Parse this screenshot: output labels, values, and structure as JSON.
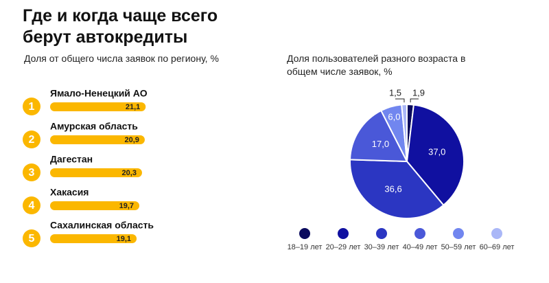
{
  "title": "Где и когда чаще всего берут автокредиты",
  "chart_data": [
    {
      "type": "bar",
      "subtitle": "Доля от общего числа заявок по региону, %",
      "ranks": [
        1,
        2,
        3,
        4,
        5
      ],
      "categories": [
        "Ямало-Ненецкий АО",
        "Амурская область",
        "Дагестан",
        "Хакасия",
        "Сахалинская область"
      ],
      "values": [
        21.1,
        20.9,
        20.3,
        19.7,
        19.1
      ],
      "value_labels": [
        "21,1",
        "20,9",
        "20,3",
        "19,7",
        "19,1"
      ],
      "color": "#fbb700"
    },
    {
      "type": "pie",
      "subtitle": "Доля пользователей разного возраста в общем числе заявок, %",
      "categories": [
        "18–19 лет",
        "20–29 лет",
        "30–39 лет",
        "40–49 лет",
        "50–59 лет",
        "60–69 лет"
      ],
      "values": [
        1.9,
        37.0,
        36.6,
        17.0,
        6.0,
        1.5
      ],
      "value_labels": [
        "1,9",
        "37,0",
        "36,6",
        "17,0",
        "6,0",
        "1,5"
      ],
      "colors": [
        "#0b0b5e",
        "#1010a0",
        "#2b36c2",
        "#4a58d8",
        "#7186ef",
        "#aab7f7"
      ]
    }
  ]
}
